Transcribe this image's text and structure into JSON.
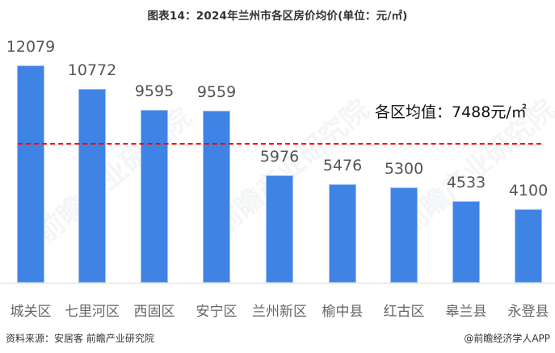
{
  "chart_data": {
    "type": "bar",
    "title": "图表14：2024年兰州市各区房价均价(单位：元/㎡)",
    "xlabel": "",
    "ylabel": "",
    "categories": [
      "城关区",
      "七里河区",
      "西固区",
      "安宁区",
      "兰州新区",
      "榆中县",
      "红古区",
      "皋兰县",
      "永登县"
    ],
    "values": [
      12079,
      10772,
      9595,
      9559,
      5976,
      5476,
      5300,
      4533,
      4100
    ],
    "value_labels": [
      "12079",
      "10772",
      "9595",
      "9559",
      "5976",
      "5476",
      "5300",
      "4533",
      "4100"
    ],
    "unit": "元/㎡",
    "reference_line": {
      "label": "各区均值：7488元/㎡",
      "value": 7488,
      "style": "dashed",
      "color": "#ff0000"
    },
    "bar_color": "#3f84e5",
    "grid": false,
    "legend": "none",
    "ylim": [
      0,
      12500
    ]
  },
  "title": "图表14：2024年兰州市各区房价均价(单位：元/㎡)",
  "avg_label": "各区均值：7488元/㎡",
  "footer": {
    "source": "资料来源：安居客 前瞻产业研究院",
    "credit": "@前瞻经济学人APP"
  },
  "watermark": "前瞻产业研究院"
}
